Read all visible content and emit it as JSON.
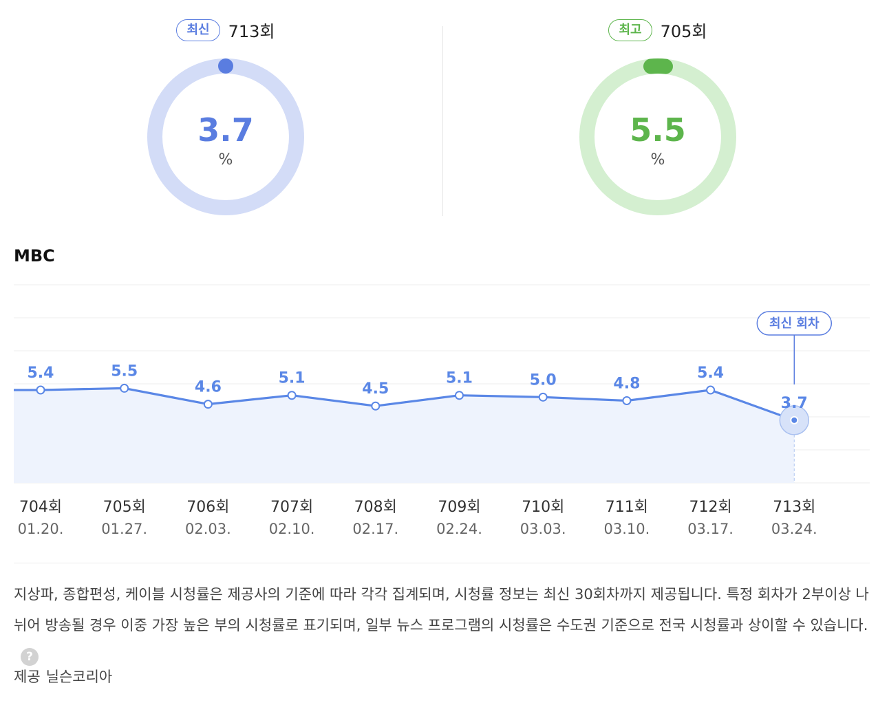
{
  "gauges": {
    "latest": {
      "badge": "최신",
      "episode": "713회",
      "value": "3.7",
      "unit": "%",
      "color": "#5a7de0",
      "track_color": "#d3dcf7"
    },
    "best": {
      "badge": "최고",
      "episode": "705회",
      "value": "5.5",
      "unit": "%",
      "color": "#5db54c",
      "track_color": "#d4efd0"
    }
  },
  "channel": "MBC",
  "chart_data": {
    "type": "line",
    "categories": [
      "704회",
      "705회",
      "706회",
      "707회",
      "708회",
      "709회",
      "710회",
      "711회",
      "712회",
      "713회"
    ],
    "dates": [
      "01.20.",
      "01.27.",
      "02.03.",
      "02.10.",
      "02.17.",
      "02.24.",
      "03.03.",
      "03.10.",
      "03.17.",
      "03.24."
    ],
    "values": [
      5.4,
      5.5,
      4.6,
      5.1,
      4.5,
      5.1,
      5.0,
      4.8,
      5.4,
      3.7
    ],
    "value_labels": [
      "5.4",
      "5.5",
      "4.6",
      "5.1",
      "4.5",
      "5.1",
      "5.0",
      "4.8",
      "5.4",
      "3.7"
    ],
    "highlight_index": 9,
    "highlight_label": "최신 회차",
    "line_color": "#5a87e6",
    "fill_color": "#eef3fd",
    "grid": true
  },
  "note": "지상파, 종합편성, 케이블 시청률은 제공사의 기준에 따라 각각 집계되며, 시청률 정보는 최신 30회차까지 제공됩니다. 특정 회차가 2부이상 나뉘어 방송될 경우 이중 가장 높은 부의 시청률로 표기되며, 일부 뉴스 프로그램의 시청률은 수도권 기준으로 전국 시청률과 상이할 수 있습니다.",
  "help_icon": "question-mark-icon",
  "provider": {
    "label": "제공",
    "name": "닐슨코리아"
  }
}
